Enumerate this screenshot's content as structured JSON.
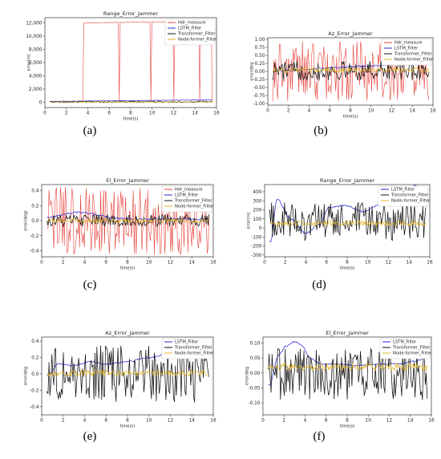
{
  "colors": {
    "hdr": "#e8413a",
    "lstm": "#2b2bd6",
    "transformer": "#111111",
    "nodeformer": "#e3b623"
  },
  "chart_data": [
    {
      "id": "a",
      "caption": "(a)",
      "type": "line",
      "title": "Range_Error_Jammer",
      "xlabel": "time(s)",
      "ylabel": "error(m)",
      "xlim": [
        0,
        16
      ],
      "ylim": [
        -800,
        12800
      ],
      "xticks": [
        "0",
        "2",
        "4",
        "6",
        "8",
        "10",
        "12",
        "14",
        "16"
      ],
      "yticks": [
        "0",
        "2,000",
        "4,000",
        "6,000",
        "8,000",
        "10,000",
        "12,000"
      ],
      "legend_position": "top-right",
      "series": [
        {
          "name": "Hdr_measure",
          "color_key": "hdr",
          "kind": "jammer_range"
        },
        {
          "name": "LSTM_Filter",
          "color_key": "lstm",
          "kind": "trend",
          "base": 120,
          "slope": 15,
          "amp": 60
        },
        {
          "name": "Transformer_Filter",
          "color_key": "transformer",
          "kind": "noise",
          "base": 60,
          "amp": 110
        },
        {
          "name": "Node-former_Filter",
          "color_key": "nodeformer",
          "kind": "noise",
          "base": 40,
          "amp": 50
        }
      ]
    },
    {
      "id": "b",
      "caption": "(b)",
      "type": "line",
      "title": "Az_Error_Jammer",
      "xlabel": "time(s)",
      "ylabel": "error/deg",
      "xlim": [
        0,
        16
      ],
      "ylim": [
        -1.05,
        1.05
      ],
      "xticks": [
        "0",
        "2",
        "4",
        "6",
        "8",
        "10",
        "12",
        "14",
        "16"
      ],
      "yticks": [
        "-1.00",
        "-0.75",
        "-0.50",
        "-0.25",
        "0.00",
        "0.25",
        "0.50",
        "0.75",
        "1.00"
      ],
      "legend_position": "top-right",
      "series": [
        {
          "name": "Hdr_measure",
          "color_key": "hdr",
          "kind": "noise",
          "base": 0.0,
          "amp": 0.95
        },
        {
          "name": "LSTM_Filter",
          "color_key": "lstm",
          "kind": "trend",
          "base": 0.0,
          "slope": 0.018,
          "amp": 0.07
        },
        {
          "name": "Transformer_Filter",
          "color_key": "transformer",
          "kind": "noise",
          "base": 0.02,
          "amp": 0.3
        },
        {
          "name": "Node-former_Filter",
          "color_key": "nodeformer",
          "kind": "noise",
          "base": 0.04,
          "amp": 0.08
        }
      ]
    },
    {
      "id": "c",
      "caption": "(c)",
      "type": "line",
      "title": "El_Error_Jammer",
      "xlabel": "time(s)",
      "ylabel": "error(deg)",
      "xlim": [
        0,
        16
      ],
      "ylim": [
        -0.48,
        0.48
      ],
      "xticks": [
        "0",
        "2",
        "4",
        "6",
        "8",
        "10",
        "12",
        "14",
        "16"
      ],
      "yticks": [
        "-0.4",
        "-0.2",
        "0.0",
        "0.2",
        "0.4"
      ],
      "legend_position": "top-right",
      "series": [
        {
          "name": "Hdr_measure",
          "color_key": "hdr",
          "kind": "noise",
          "base": 0.0,
          "amp": 0.46
        },
        {
          "name": "LSTM_Filter",
          "color_key": "lstm",
          "kind": "bump",
          "base": 0.02,
          "peak": 0.11,
          "center": 3.5,
          "width": 2.5
        },
        {
          "name": "Transformer_Filter",
          "color_key": "transformer",
          "kind": "noise",
          "base": 0.0,
          "amp": 0.08
        },
        {
          "name": "Node-former_Filter",
          "color_key": "nodeformer",
          "kind": "noise",
          "base": 0.0,
          "amp": 0.03
        }
      ]
    },
    {
      "id": "d",
      "caption": "(d)",
      "type": "line",
      "title": "Range_Error_Jammer",
      "xlabel": "time(s)",
      "ylabel": "error(m)",
      "xlim": [
        0,
        16
      ],
      "ylim": [
        -320,
        480
      ],
      "xticks": [
        "0",
        "2",
        "4",
        "6",
        "8",
        "10",
        "12",
        "14",
        "16"
      ],
      "yticks": [
        "-300",
        "-200",
        "-100",
        "0",
        "100",
        "200",
        "300",
        "400"
      ],
      "legend_position": "top-right",
      "series": [
        {
          "name": "LSTM_Filter",
          "color_key": "lstm",
          "kind": "wander",
          "points": [
            [
              0.6,
              -150
            ],
            [
              1.2,
              320
            ],
            [
              2.5,
              100
            ],
            [
              4,
              -60
            ],
            [
              5.2,
              30
            ],
            [
              6.3,
              230
            ],
            [
              7.8,
              250
            ],
            [
              9.5,
              180
            ],
            [
              11,
              250
            ],
            [
              12.3,
              330
            ],
            [
              13.5,
              300
            ],
            [
              14.6,
              470
            ],
            [
              15.6,
              330
            ]
          ]
        },
        {
          "name": "Transformer_Filter",
          "color_key": "transformer",
          "kind": "noise",
          "base": 70,
          "amp": 210
        },
        {
          "name": "Node-former_Filter",
          "color_key": "nodeformer",
          "kind": "noise",
          "base": 50,
          "amp": 30
        }
      ]
    },
    {
      "id": "e",
      "caption": "(e)",
      "type": "line",
      "title": "Az_Error_Jammer",
      "xlabel": "time(s)",
      "ylabel": "error/deg",
      "xlim": [
        0,
        16
      ],
      "ylim": [
        -0.5,
        0.45
      ],
      "xticks": [
        "0",
        "2",
        "4",
        "6",
        "8",
        "10",
        "12",
        "14",
        "16"
      ],
      "yticks": [
        "-0.4",
        "-0.2",
        "0.0",
        "0.2",
        "0.4"
      ],
      "legend_position": "top-right",
      "series": [
        {
          "name": "LSTM_Filter",
          "color_key": "lstm",
          "kind": "wander",
          "points": [
            [
              0.6,
              -0.02
            ],
            [
              1.5,
              0.12
            ],
            [
              3,
              0.1
            ],
            [
              4.5,
              0.15
            ],
            [
              6,
              0.12
            ],
            [
              8,
              0.15
            ],
            [
              10,
              0.2
            ],
            [
              12,
              0.25
            ],
            [
              13.6,
              0.28
            ],
            [
              14.4,
              0.4
            ],
            [
              15.6,
              0.3
            ]
          ]
        },
        {
          "name": "Transformer_Filter",
          "color_key": "transformer",
          "kind": "noise",
          "base": 0.0,
          "amp": 0.35
        },
        {
          "name": "Node-former_Filter",
          "color_key": "nodeformer",
          "kind": "noise",
          "base": 0.01,
          "amp": 0.04
        }
      ]
    },
    {
      "id": "f",
      "caption": "(f)",
      "type": "line",
      "title": "El_Error_Jammer",
      "xlabel": "time(s)",
      "ylabel": "error/deg",
      "xlim": [
        0,
        16
      ],
      "ylim": [
        -0.14,
        0.12
      ],
      "xticks": [
        "0",
        "2",
        "4",
        "6",
        "8",
        "10",
        "12",
        "14",
        "16"
      ],
      "yticks": [
        "-0.10",
        "-0.05",
        "0.00",
        "0.05",
        "0.10"
      ],
      "legend_position": "top-right",
      "series": [
        {
          "name": "LSTM_Filter",
          "color_key": "lstm",
          "kind": "wander",
          "points": [
            [
              0.6,
              -0.04
            ],
            [
              1.5,
              0.06
            ],
            [
              2.2,
              0.09
            ],
            [
              3,
              0.105
            ],
            [
              3.6,
              0.095
            ],
            [
              4.5,
              0.05
            ],
            [
              5.5,
              0.03
            ],
            [
              7,
              0.03
            ],
            [
              9,
              0.025
            ],
            [
              11,
              0.03
            ],
            [
              13,
              0.03
            ],
            [
              14.5,
              0.04
            ],
            [
              15.6,
              0.05
            ]
          ]
        },
        {
          "name": "Transformer_Filter",
          "color_key": "transformer",
          "kind": "noise",
          "base": 0.0,
          "amp": 0.09
        },
        {
          "name": "Node-former_Filter",
          "color_key": "nodeformer",
          "kind": "noise",
          "base": 0.02,
          "amp": 0.012
        }
      ]
    }
  ]
}
